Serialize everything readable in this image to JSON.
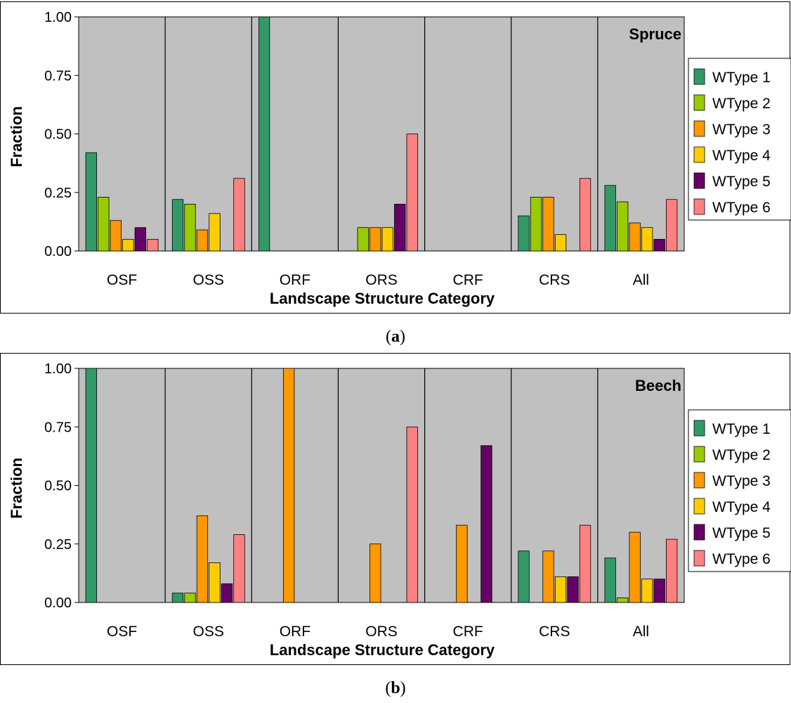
{
  "chart_data": [
    {
      "type": "bar",
      "panel_label": "a",
      "title": "Spruce",
      "xlabel": "Landscape Structure Category",
      "ylabel": "Fraction",
      "ylim": [
        0,
        1
      ],
      "yticks": [
        "0.00",
        "0.25",
        "0.50",
        "0.75",
        "1.00"
      ],
      "categories": [
        "OSF",
        "OSS",
        "ORF",
        "ORS",
        "CRF",
        "CRS",
        "All"
      ],
      "series": [
        {
          "name": "WType 1",
          "color": "#339966",
          "values": [
            0.42,
            0.22,
            1.0,
            0,
            0,
            0.15,
            0.28
          ]
        },
        {
          "name": "WType 2",
          "color": "#99CC00",
          "values": [
            0.23,
            0.2,
            0,
            0.1,
            0,
            0.23,
            0.21
          ]
        },
        {
          "name": "WType 3",
          "color": "#FF9900",
          "values": [
            0.13,
            0.09,
            0,
            0.1,
            0,
            0.23,
            0.12
          ]
        },
        {
          "name": "WType 4",
          "color": "#FFCC00",
          "values": [
            0.05,
            0.16,
            0,
            0.1,
            0,
            0.07,
            0.1
          ]
        },
        {
          "name": "WType 5",
          "color": "#660066",
          "values": [
            0.1,
            0,
            0,
            0.2,
            0,
            0,
            0.05
          ]
        },
        {
          "name": "WType 6",
          "color": "#FF8080",
          "values": [
            0.05,
            0.31,
            0,
            0.5,
            0,
            0.31,
            0.22
          ]
        }
      ]
    },
    {
      "type": "bar",
      "panel_label": "b",
      "title": "Beech",
      "xlabel": "Landscape Structure Category",
      "ylabel": "Fraction",
      "ylim": [
        0,
        1
      ],
      "yticks": [
        "0.00",
        "0.25",
        "0.50",
        "0.75",
        "1.00"
      ],
      "categories": [
        "OSF",
        "OSS",
        "ORF",
        "ORS",
        "CRF",
        "CRS",
        "All"
      ],
      "series": [
        {
          "name": "WType 1",
          "color": "#339966",
          "values": [
            1.0,
            0.04,
            0,
            0,
            0,
            0.22,
            0.19
          ]
        },
        {
          "name": "WType 2",
          "color": "#99CC00",
          "values": [
            0,
            0.04,
            0,
            0,
            0,
            0,
            0.02
          ]
        },
        {
          "name": "WType 3",
          "color": "#FF9900",
          "values": [
            0,
            0.37,
            1.0,
            0.25,
            0.33,
            0.22,
            0.3
          ]
        },
        {
          "name": "WType 4",
          "color": "#FFCC00",
          "values": [
            0,
            0.17,
            0,
            0,
            0,
            0.11,
            0.1
          ]
        },
        {
          "name": "WType 5",
          "color": "#660066",
          "values": [
            0,
            0.08,
            0,
            0,
            0.67,
            0.11,
            0.1
          ]
        },
        {
          "name": "WType 6",
          "color": "#FF8080",
          "values": [
            0,
            0.29,
            0,
            0.75,
            0,
            0.33,
            0.27
          ]
        }
      ]
    }
  ]
}
